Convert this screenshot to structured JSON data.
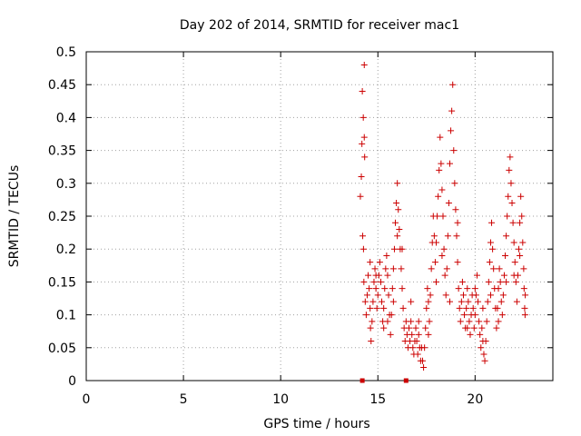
{
  "chart_data": {
    "type": "scatter",
    "title": "Day 202 of 2014, SRMTID for receiver mac1",
    "xlabel": "GPS time / hours",
    "ylabel": "SRMTID / TECUs",
    "xlim": [
      0,
      24
    ],
    "ylim": [
      0,
      0.5
    ],
    "xticks": [
      0,
      5,
      10,
      15,
      20
    ],
    "yticks": [
      0,
      0.05,
      0.1,
      0.15,
      0.2,
      0.25,
      0.3,
      0.35,
      0.4,
      0.45,
      0.5
    ],
    "xtick_labels": [
      "0",
      "5",
      "10",
      "15",
      "20"
    ],
    "ytick_labels": [
      "0",
      "0.05",
      "0.1",
      "0.15",
      "0.2",
      "0.25",
      "0.3",
      "0.35",
      "0.4",
      "0.45",
      "0.5"
    ],
    "grid": true,
    "marker": "+",
    "color": "#cc0000",
    "series": [
      {
        "name": "SRMTID",
        "points": [
          [
            14.1,
            0.28
          ],
          [
            14.15,
            0.31
          ],
          [
            14.18,
            0.36
          ],
          [
            14.2,
            0.44
          ],
          [
            14.25,
            0.4
          ],
          [
            14.3,
            0.48
          ],
          [
            14.3,
            0.37
          ],
          [
            14.32,
            0.34
          ],
          [
            14.22,
            0.22
          ],
          [
            14.26,
            0.2
          ],
          [
            14.28,
            0.15
          ],
          [
            14.35,
            0.12
          ],
          [
            14.4,
            0.1
          ],
          [
            14.45,
            0.13
          ],
          [
            14.5,
            0.16
          ],
          [
            14.55,
            0.14
          ],
          [
            14.6,
            0.11
          ],
          [
            14.62,
            0.08
          ],
          [
            14.65,
            0.06
          ],
          [
            14.7,
            0.09
          ],
          [
            14.75,
            0.12
          ],
          [
            14.8,
            0.15
          ],
          [
            14.85,
            0.17
          ],
          [
            14.9,
            0.14
          ],
          [
            14.95,
            0.11
          ],
          [
            15.0,
            0.13
          ],
          [
            15.05,
            0.16
          ],
          [
            15.1,
            0.18
          ],
          [
            15.15,
            0.15
          ],
          [
            15.2,
            0.12
          ],
          [
            15.25,
            0.09
          ],
          [
            15.3,
            0.11
          ],
          [
            15.35,
            0.14
          ],
          [
            15.4,
            0.17
          ],
          [
            15.45,
            0.19
          ],
          [
            15.5,
            0.16
          ],
          [
            15.55,
            0.13
          ],
          [
            15.6,
            0.1
          ],
          [
            15.65,
            0.07
          ],
          [
            15.7,
            0.1
          ],
          [
            15.75,
            0.14
          ],
          [
            15.8,
            0.17
          ],
          [
            15.85,
            0.2
          ],
          [
            15.9,
            0.24
          ],
          [
            15.95,
            0.27
          ],
          [
            16.0,
            0.3
          ],
          [
            16.05,
            0.26
          ],
          [
            16.1,
            0.23
          ],
          [
            16.15,
            0.2
          ],
          [
            16.2,
            0.17
          ],
          [
            16.25,
            0.14
          ],
          [
            16.3,
            0.11
          ],
          [
            16.35,
            0.08
          ],
          [
            16.4,
            0.06
          ],
          [
            16.45,
            0.09
          ],
          [
            16.5,
            0.07
          ],
          [
            16.55,
            0.05
          ],
          [
            16.6,
            0.08
          ],
          [
            16.65,
            0.06
          ],
          [
            16.7,
            0.09
          ],
          [
            16.75,
            0.07
          ],
          [
            16.8,
            0.05
          ],
          [
            16.85,
            0.04
          ],
          [
            16.9,
            0.06
          ],
          [
            16.95,
            0.08
          ],
          [
            17.0,
            0.06
          ],
          [
            17.05,
            0.04
          ],
          [
            17.1,
            0.07
          ],
          [
            17.15,
            0.05
          ],
          [
            17.2,
            0.03
          ],
          [
            17.25,
            0.05
          ],
          [
            17.3,
            0.03
          ],
          [
            17.35,
            0.02
          ],
          [
            17.4,
            0.05
          ],
          [
            17.45,
            0.08
          ],
          [
            17.5,
            0.11
          ],
          [
            17.55,
            0.14
          ],
          [
            17.6,
            0.12
          ],
          [
            17.65,
            0.09
          ],
          [
            17.7,
            0.13
          ],
          [
            17.75,
            0.17
          ],
          [
            17.8,
            0.21
          ],
          [
            17.85,
            0.25
          ],
          [
            17.9,
            0.22
          ],
          [
            17.95,
            0.18
          ],
          [
            18.0,
            0.21
          ],
          [
            18.05,
            0.25
          ],
          [
            18.1,
            0.28
          ],
          [
            18.15,
            0.32
          ],
          [
            18.2,
            0.37
          ],
          [
            18.25,
            0.33
          ],
          [
            18.3,
            0.29
          ],
          [
            18.35,
            0.25
          ],
          [
            18.4,
            0.2
          ],
          [
            18.45,
            0.16
          ],
          [
            18.5,
            0.13
          ],
          [
            18.55,
            0.17
          ],
          [
            18.6,
            0.22
          ],
          [
            18.65,
            0.27
          ],
          [
            18.7,
            0.33
          ],
          [
            18.75,
            0.38
          ],
          [
            18.8,
            0.41
          ],
          [
            18.85,
            0.45
          ],
          [
            18.9,
            0.35
          ],
          [
            18.95,
            0.3
          ],
          [
            19.0,
            0.26
          ],
          [
            19.05,
            0.22
          ],
          [
            19.1,
            0.18
          ],
          [
            19.15,
            0.14
          ],
          [
            19.2,
            0.11
          ],
          [
            19.25,
            0.09
          ],
          [
            19.3,
            0.12
          ],
          [
            19.35,
            0.15
          ],
          [
            19.4,
            0.13
          ],
          [
            19.45,
            0.1
          ],
          [
            19.5,
            0.08
          ],
          [
            19.55,
            0.11
          ],
          [
            19.6,
            0.14
          ],
          [
            19.65,
            0.12
          ],
          [
            19.7,
            0.09
          ],
          [
            19.75,
            0.07
          ],
          [
            19.8,
            0.1
          ],
          [
            19.85,
            0.13
          ],
          [
            19.9,
            0.11
          ],
          [
            19.95,
            0.08
          ],
          [
            20.0,
            0.1
          ],
          [
            20.05,
            0.13
          ],
          [
            20.1,
            0.16
          ],
          [
            20.15,
            0.12
          ],
          [
            20.2,
            0.09
          ],
          [
            20.25,
            0.07
          ],
          [
            20.3,
            0.05
          ],
          [
            20.35,
            0.08
          ],
          [
            20.4,
            0.06
          ],
          [
            20.45,
            0.04
          ],
          [
            20.5,
            0.03
          ],
          [
            20.55,
            0.06
          ],
          [
            20.6,
            0.09
          ],
          [
            20.65,
            0.12
          ],
          [
            20.7,
            0.15
          ],
          [
            20.75,
            0.18
          ],
          [
            20.8,
            0.21
          ],
          [
            20.85,
            0.24
          ],
          [
            20.9,
            0.2
          ],
          [
            20.95,
            0.17
          ],
          [
            21.0,
            0.14
          ],
          [
            21.05,
            0.11
          ],
          [
            21.1,
            0.08
          ],
          [
            21.15,
            0.11
          ],
          [
            21.2,
            0.14
          ],
          [
            21.25,
            0.17
          ],
          [
            21.3,
            0.15
          ],
          [
            21.35,
            0.12
          ],
          [
            21.4,
            0.1
          ],
          [
            21.45,
            0.13
          ],
          [
            21.5,
            0.16
          ],
          [
            21.55,
            0.19
          ],
          [
            21.6,
            0.22
          ],
          [
            21.65,
            0.25
          ],
          [
            21.7,
            0.28
          ],
          [
            21.75,
            0.32
          ],
          [
            21.8,
            0.34
          ],
          [
            21.85,
            0.3
          ],
          [
            21.9,
            0.27
          ],
          [
            21.95,
            0.24
          ],
          [
            22.0,
            0.21
          ],
          [
            22.05,
            0.18
          ],
          [
            22.1,
            0.15
          ],
          [
            22.15,
            0.12
          ],
          [
            22.2,
            0.16
          ],
          [
            22.25,
            0.2
          ],
          [
            22.3,
            0.24
          ],
          [
            22.35,
            0.28
          ],
          [
            22.4,
            0.25
          ],
          [
            22.45,
            0.21
          ],
          [
            22.5,
            0.17
          ],
          [
            22.52,
            0.14
          ],
          [
            22.55,
            0.11
          ],
          [
            22.57,
            0.1
          ],
          [
            22.58,
            0.13
          ],
          [
            14.6,
            0.18
          ],
          [
            14.9,
            0.16
          ],
          [
            15.3,
            0.08
          ],
          [
            15.5,
            0.09
          ],
          [
            15.8,
            0.12
          ],
          [
            16.0,
            0.22
          ],
          [
            16.25,
            0.2
          ],
          [
            16.7,
            0.12
          ],
          [
            17.1,
            0.09
          ],
          [
            17.6,
            0.07
          ],
          [
            18.0,
            0.15
          ],
          [
            18.3,
            0.19
          ],
          [
            18.7,
            0.12
          ],
          [
            19.1,
            0.24
          ],
          [
            19.6,
            0.08
          ],
          [
            20.0,
            0.14
          ],
          [
            20.4,
            0.11
          ],
          [
            20.8,
            0.13
          ],
          [
            21.2,
            0.09
          ],
          [
            21.6,
            0.15
          ],
          [
            22.0,
            0.16
          ],
          [
            22.3,
            0.19
          ]
        ],
        "zero_markers": [
          14.2,
          16.45
        ]
      }
    ]
  }
}
